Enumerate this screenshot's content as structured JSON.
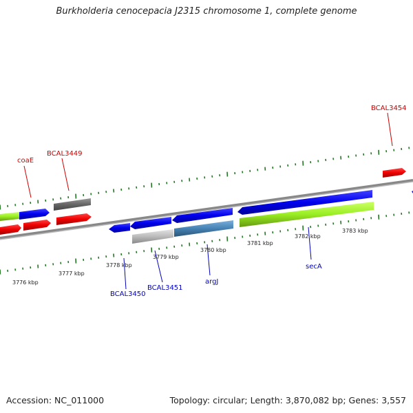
{
  "title": "Burkholderia cenocepacia J2315 chromosome 1, complete genome",
  "footer": {
    "accession": "Accession: NC_011000",
    "summary": "Topology: circular; Length: 3,870,082 bp; Genes: 3,557"
  },
  "scale": {
    "unit": "kbp",
    "labels": [
      "3776 kbp",
      "3777 kbp",
      "3778 kbp",
      "3779 kbp",
      "3780 kbp",
      "3781 kbp",
      "3782 kbp",
      "3783 kbp"
    ]
  },
  "gene_labels": [
    "coaE",
    "BCAL3449",
    "BCAL3454",
    "BCAL3450",
    "BCAL3451",
    "argJ",
    "secA"
  ],
  "colors": {
    "forward_gene": "#0000ee",
    "reverse_gene": "#ee0000",
    "highlight_bar": "#99ee22",
    "pseudo_gene_gray": "#666666",
    "light_gray_gene": "#bbbbbb",
    "steel_blue_gene": "#4682b4",
    "tick_green": "#227722",
    "label_red": "#cc0000",
    "label_blue": "#0000bb",
    "backbone": "#888888"
  }
}
